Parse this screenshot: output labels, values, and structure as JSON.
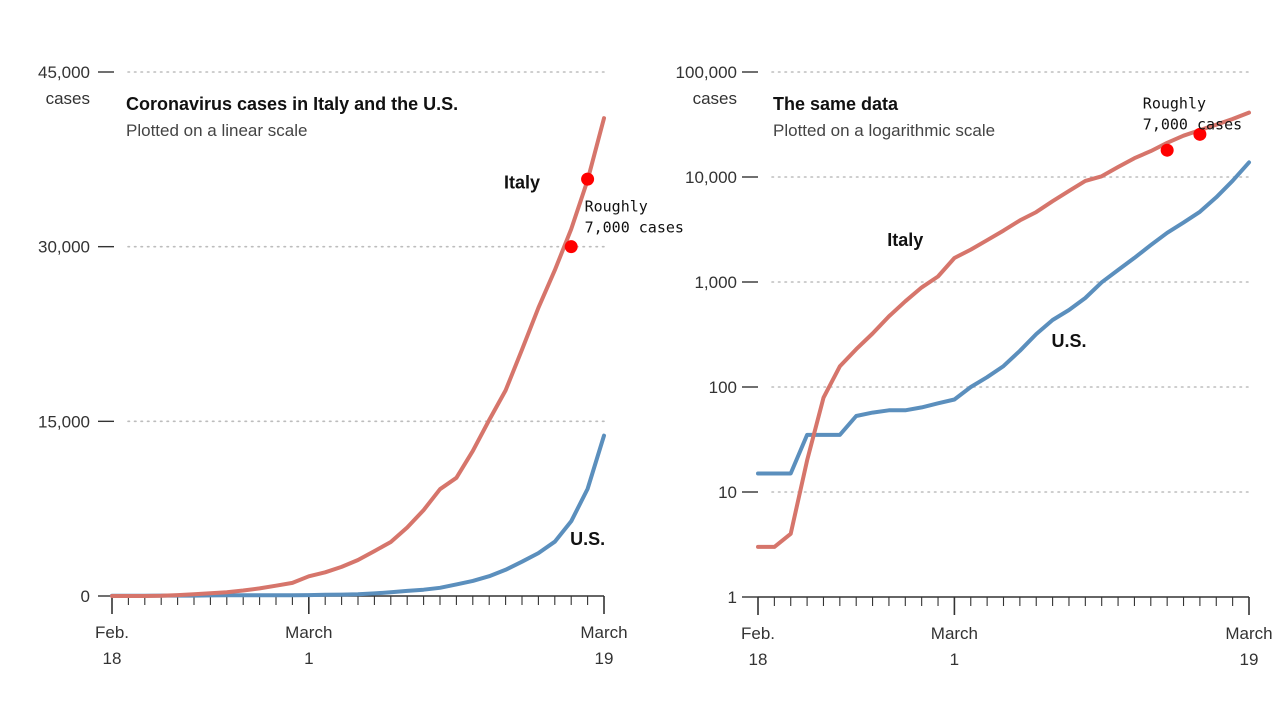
{
  "colors": {
    "italy": "#d6756b",
    "us": "#5b8fbd",
    "marker": "#ff0000"
  },
  "chart_data": [
    {
      "type": "line",
      "title": "Coronavirus cases in Italy and the U.S.",
      "subtitle": "Plotted on a linear scale",
      "scale": "linear",
      "ylim": [
        0,
        45000
      ],
      "yticks": [
        {
          "value": 0,
          "label": "0"
        },
        {
          "value": 15000,
          "label": "15,000"
        },
        {
          "value": 30000,
          "label": "30,000"
        },
        {
          "value": 45000,
          "label": "45,000"
        }
      ],
      "yunit": "cases",
      "xlim": [
        "2020-02-18",
        "2020-03-19"
      ],
      "xticks": [
        {
          "date": "2020-02-18",
          "line1": "Feb.",
          "line2": "18"
        },
        {
          "date": "2020-03-01",
          "line1": "March",
          "line2": "1"
        },
        {
          "date": "2020-03-19",
          "line1": "March",
          "line2": "19"
        }
      ],
      "grid": true,
      "series_labels": [
        {
          "series": "Italy",
          "text": "Italy",
          "x": "2020-03-14",
          "y": 35000
        },
        {
          "series": "U.S.",
          "text": "U.S.",
          "x": "2020-03-18",
          "y": 4400
        }
      ],
      "markers": [
        {
          "x": "2020-03-17",
          "y": 30000
        },
        {
          "x": "2020-03-18",
          "y": 35800
        }
      ],
      "annotation": {
        "lines": [
          "Roughly",
          "7,000 cases"
        ],
        "x": "2020-03-18",
        "y": 33000
      }
    },
    {
      "type": "line",
      "title": "The same data",
      "subtitle": "Plotted on a logarithmic scale",
      "scale": "log",
      "ylim": [
        1,
        100000
      ],
      "yticks": [
        {
          "value": 1,
          "label": "1"
        },
        {
          "value": 10,
          "label": "10"
        },
        {
          "value": 100,
          "label": "100"
        },
        {
          "value": 1000,
          "label": "1,000"
        },
        {
          "value": 10000,
          "label": "10,000"
        },
        {
          "value": 100000,
          "label": "100,000"
        }
      ],
      "yunit": "cases",
      "xlim": [
        "2020-02-18",
        "2020-03-19"
      ],
      "xticks": [
        {
          "date": "2020-02-18",
          "line1": "Feb.",
          "line2": "18"
        },
        {
          "date": "2020-03-01",
          "line1": "March",
          "line2": "1"
        },
        {
          "date": "2020-03-19",
          "line1": "March",
          "line2": "19"
        }
      ],
      "grid": true,
      "series_labels": [
        {
          "series": "Italy",
          "text": "Italy",
          "x": "2020-02-27",
          "y": 2200
        },
        {
          "series": "U.S.",
          "text": "U.S.",
          "x": "2020-03-08",
          "y": 240
        }
      ],
      "markers": [
        {
          "x": "2020-03-14",
          "y": 18000
        },
        {
          "x": "2020-03-16",
          "y": 25500
        }
      ],
      "annotation": {
        "lines": [
          "Roughly",
          "7,000 cases"
        ],
        "x": "2020-03-13",
        "y": 45000
      }
    }
  ],
  "series": [
    {
      "name": "Italy",
      "x": [
        "2020-02-18",
        "2020-02-19",
        "2020-02-20",
        "2020-02-21",
        "2020-02-22",
        "2020-02-23",
        "2020-02-24",
        "2020-02-25",
        "2020-02-26",
        "2020-02-27",
        "2020-02-28",
        "2020-02-29",
        "2020-03-01",
        "2020-03-02",
        "2020-03-03",
        "2020-03-04",
        "2020-03-05",
        "2020-03-06",
        "2020-03-07",
        "2020-03-08",
        "2020-03-09",
        "2020-03-10",
        "2020-03-11",
        "2020-03-12",
        "2020-03-13",
        "2020-03-14",
        "2020-03-15",
        "2020-03-16",
        "2020-03-17",
        "2020-03-18",
        "2020-03-19"
      ],
      "values": [
        3,
        3,
        4,
        20,
        79,
        157,
        229,
        323,
        470,
        655,
        888,
        1128,
        1694,
        2036,
        2502,
        3089,
        3858,
        4636,
        5883,
        7375,
        9172,
        10149,
        12462,
        15113,
        17660,
        21157,
        24747,
        27980,
        31506,
        35713,
        41035
      ]
    },
    {
      "name": "U.S.",
      "x": [
        "2020-02-18",
        "2020-02-19",
        "2020-02-20",
        "2020-02-21",
        "2020-02-22",
        "2020-02-23",
        "2020-02-24",
        "2020-02-25",
        "2020-02-26",
        "2020-02-27",
        "2020-02-28",
        "2020-02-29",
        "2020-03-01",
        "2020-03-02",
        "2020-03-03",
        "2020-03-04",
        "2020-03-05",
        "2020-03-06",
        "2020-03-07",
        "2020-03-08",
        "2020-03-09",
        "2020-03-10",
        "2020-03-11",
        "2020-03-12",
        "2020-03-13",
        "2020-03-14",
        "2020-03-15",
        "2020-03-16",
        "2020-03-17",
        "2020-03-18",
        "2020-03-19"
      ],
      "values": [
        15,
        15,
        15,
        35,
        35,
        35,
        53,
        57,
        60,
        60,
        64,
        70,
        76,
        100,
        124,
        158,
        221,
        319,
        435,
        541,
        704,
        994,
        1301,
        1697,
        2247,
        2943,
        3680,
        4663,
        6411,
        9197,
        13779
      ]
    }
  ]
}
